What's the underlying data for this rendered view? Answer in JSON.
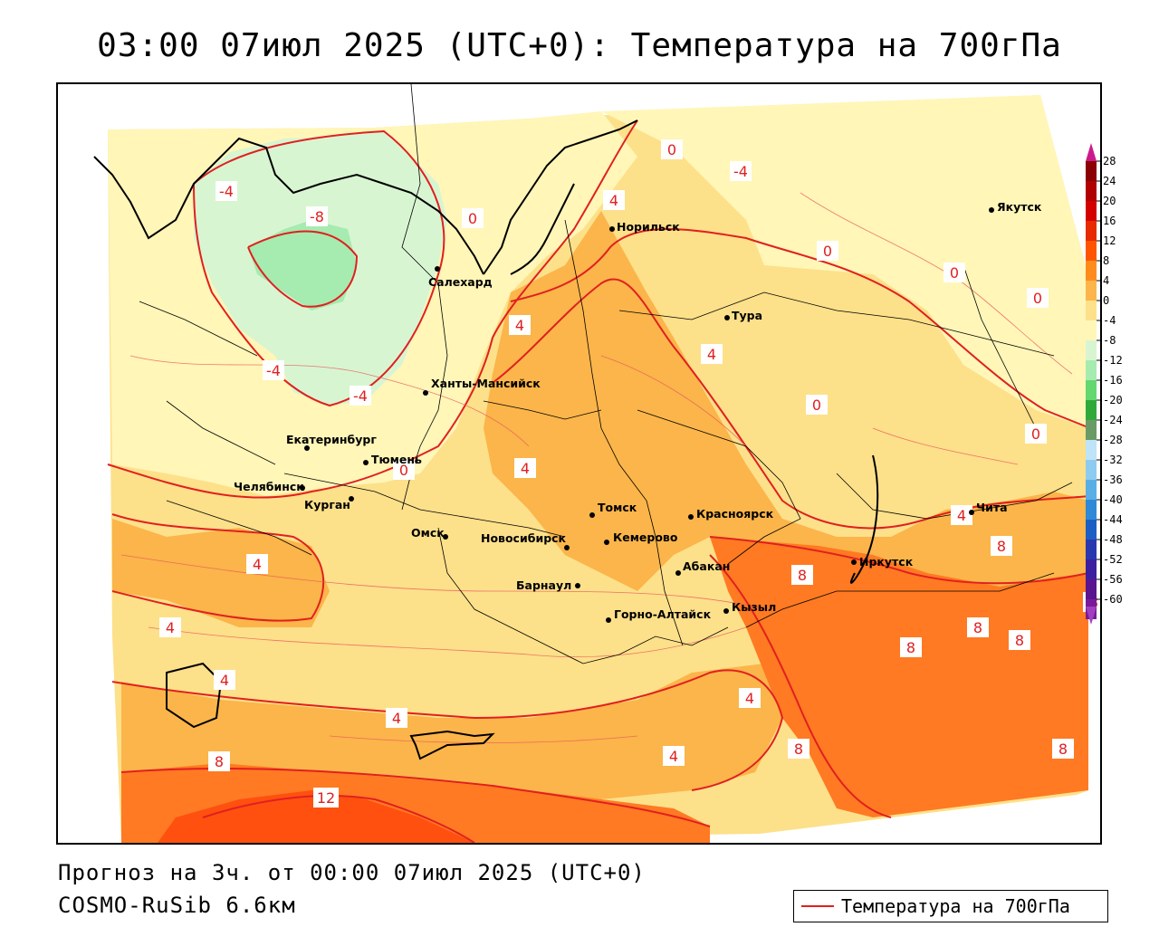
{
  "title": "03:00 07июл 2025 (UTC+0): Температура на 700гПа",
  "footer": {
    "forecast_line": "Прогноз на 3ч. от 00:00 07июл 2025 (UTC+0)",
    "model_line": "COSMO-RuSib 6.6км"
  },
  "legend": {
    "label": "Температура на 700гПа",
    "line_color": "#e02020"
  },
  "colorbar": {
    "ticks": [
      "28",
      "24",
      "20",
      "16",
      "12",
      "8",
      "4",
      "0",
      "-4",
      "-8",
      "-12",
      "-16",
      "-20",
      "-24",
      "-28",
      "-32",
      "-36",
      "-40",
      "-44",
      "-48",
      "-52",
      "-56",
      "-60"
    ],
    "colors": [
      "#8b0000",
      "#b00000",
      "#d40000",
      "#e82a00",
      "#ff5500",
      "#ff8c1a",
      "#fbb54a",
      "#fde08a",
      "#fff6b8",
      "#d8f5d2",
      "#a6ebb0",
      "#63d86e",
      "#2faa3a",
      "#6a9b66",
      "#bfe3f7",
      "#8dcbf0",
      "#5aaee6",
      "#2e8ad6",
      "#1c5fc4",
      "#2a38b0",
      "#3b1fa0",
      "#5a1490",
      "#7a1a9a"
    ],
    "top_arrow_color": "#cc1a8c",
    "bottom_arrow_color": "#a040c0"
  },
  "cities": [
    {
      "name": "Якутск"
    },
    {
      "name": "Норильск"
    },
    {
      "name": "Салехард"
    },
    {
      "name": "Тура"
    },
    {
      "name": "Ханты-Мансийск"
    },
    {
      "name": "Екатеринбург"
    },
    {
      "name": "Тюмень"
    },
    {
      "name": "Челябинск"
    },
    {
      "name": "Курган"
    },
    {
      "name": "Омск"
    },
    {
      "name": "Томск"
    },
    {
      "name": "Красноярск"
    },
    {
      "name": "Новосибирск"
    },
    {
      "name": "Кемерово"
    },
    {
      "name": "Абакан"
    },
    {
      "name": "Барнаул"
    },
    {
      "name": "Горно-Алтайск"
    },
    {
      "name": "Кызыл"
    },
    {
      "name": "Иркутск"
    },
    {
      "name": "Чита"
    }
  ],
  "contour_labels": [
    "-4",
    "-8",
    "-4",
    "-4",
    "-4",
    "0",
    "0",
    "0",
    "0",
    "0",
    "0",
    "0",
    "0",
    "4",
    "4",
    "4",
    "4",
    "4",
    "4",
    "4",
    "4",
    "4",
    "4",
    "4",
    "8",
    "8",
    "8",
    "8",
    "8",
    "8",
    "8",
    "8",
    "8",
    "12"
  ],
  "fill_colors": {
    "plus12": "#ff5010",
    "plus8": "#ff7a22",
    "plus4": "#fbb54a",
    "zero": "#fde08a",
    "minus4": "#fff6b8",
    "minus8": "#d8f5d2",
    "minus12": "#a6ebb0",
    "minus16": "#63d86e"
  }
}
